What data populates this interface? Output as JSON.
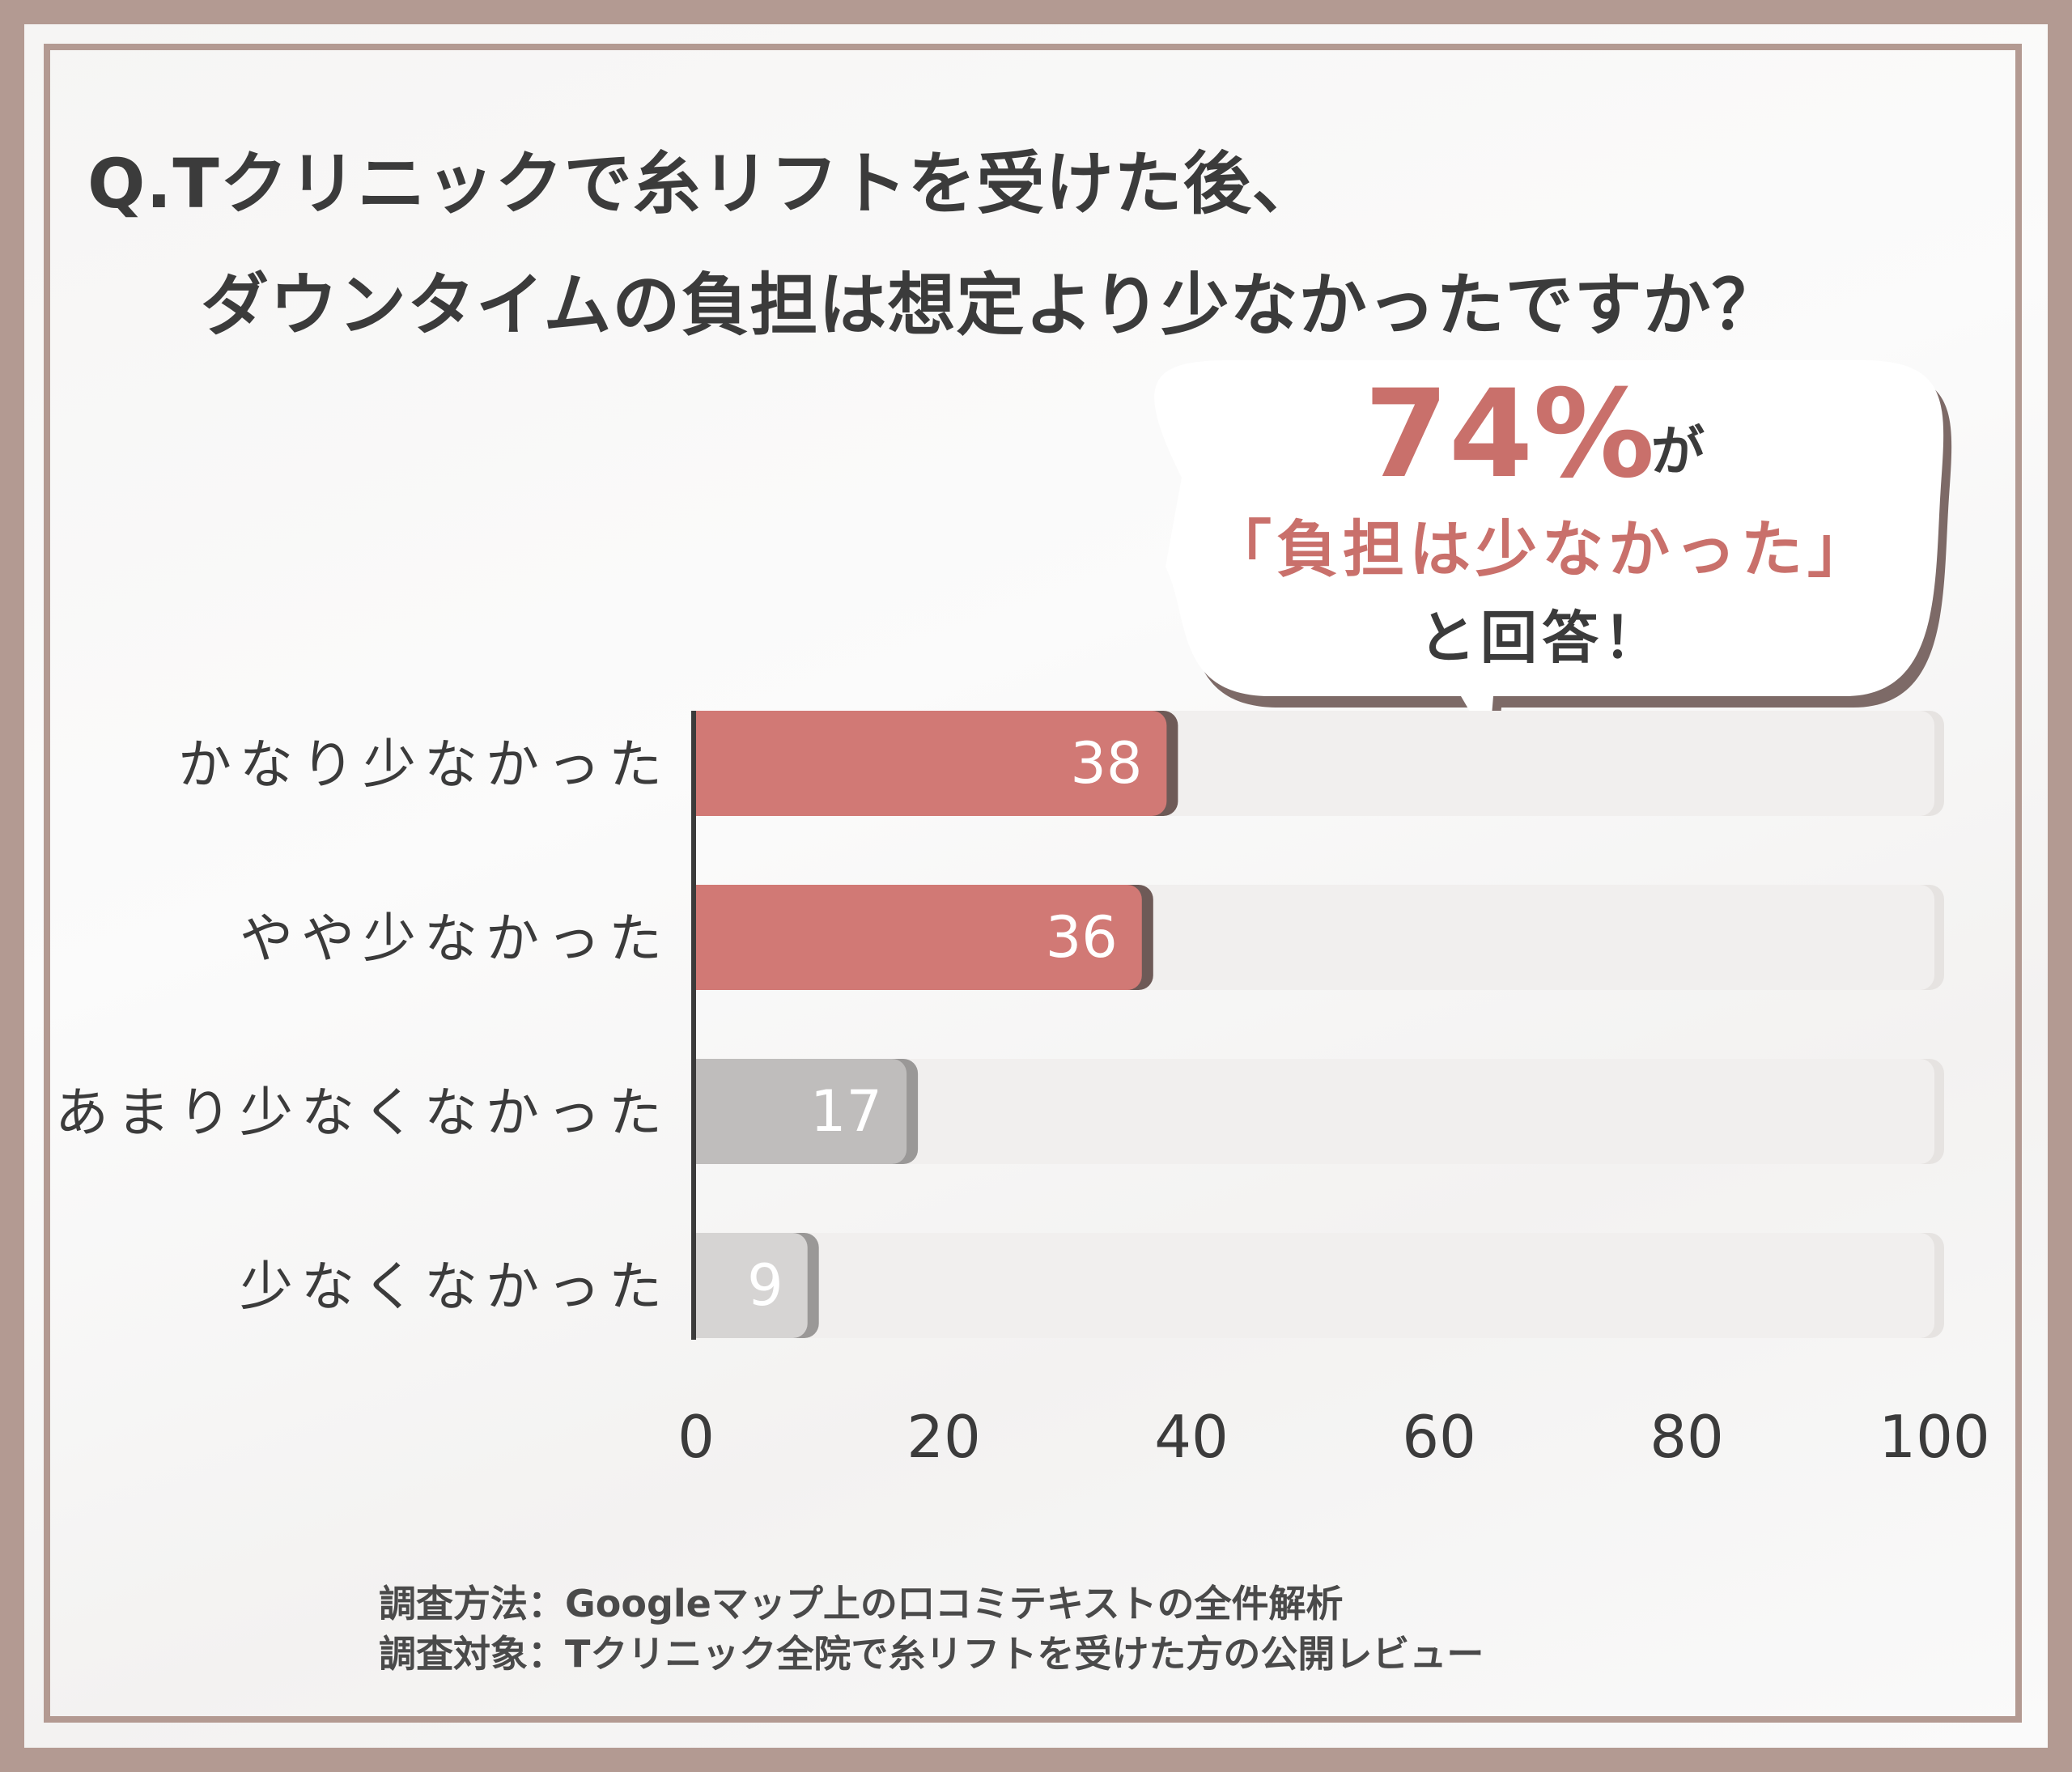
{
  "title": {
    "line1": "Q.Tクリニックで糸リフトを受けた後、",
    "line2": "ダウンタイムの負担は想定より少なかったですか？"
  },
  "callout": {
    "percent": "74%",
    "suffix": "が",
    "quote": "「負担は少なかった」",
    "closing": "と回答！"
  },
  "chart_data": {
    "type": "bar",
    "orientation": "horizontal",
    "categories": [
      "かなり少なかった",
      "やや少なかった",
      "あまり少なくなかった",
      "少なくなかった"
    ],
    "values": [
      38,
      36,
      17,
      9
    ],
    "xlim": [
      0,
      100
    ],
    "xticks": [
      "0",
      "20",
      "40",
      "60",
      "80",
      "100"
    ],
    "grid": false,
    "colors": {
      "highlight": "#d17975",
      "highlight_shadow": "#6e5a57",
      "muted": "#bfbdbc",
      "muted_last": "#d6d4d3",
      "muted_shadow": "#9a9897",
      "track": "#f1efee",
      "axis": "#3b3b3b",
      "accent_text": "#c9706b"
    }
  },
  "footer": {
    "method": "調査方法：Googleマップ上の口コミテキストの全件解析",
    "target": "調査対象：Tクリニック全院で糸リフトを受けた方の公開レビュー"
  }
}
